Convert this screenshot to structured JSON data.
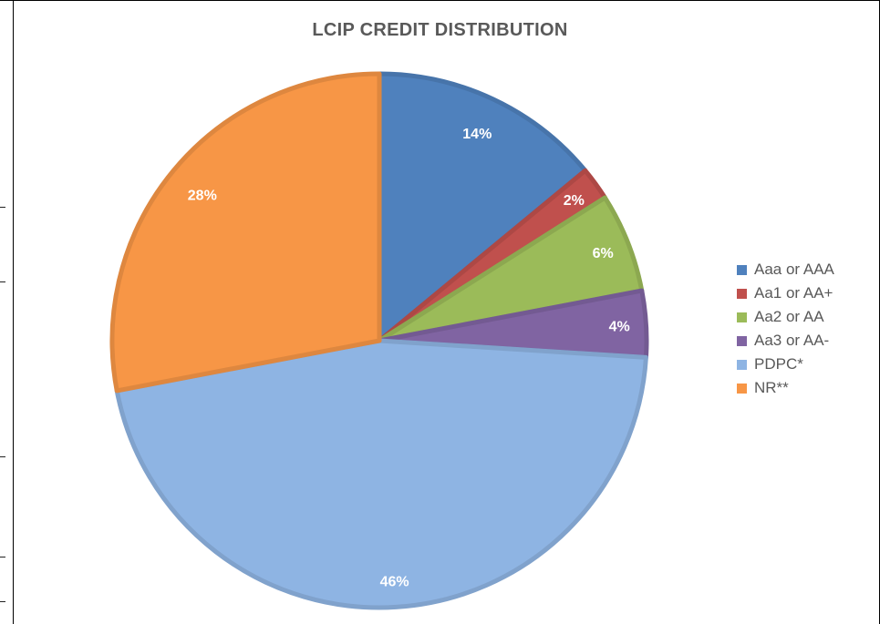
{
  "chart_data": {
    "type": "pie",
    "title": "LCIP CREDIT DISTRIBUTION",
    "slices": [
      {
        "name": "Aaa or AAA",
        "value": 14,
        "label": "14%",
        "color": "#4f81bd"
      },
      {
        "name": "Aa1 or AA+",
        "value": 2,
        "label": "2%",
        "color": "#c0504d"
      },
      {
        "name": "Aa2 or AA",
        "value": 6,
        "label": "6%",
        "color": "#9bbb59"
      },
      {
        "name": "Aa3 or AA-",
        "value": 4,
        "label": "4%",
        "color": "#8064a2"
      },
      {
        "name": "PDPC*",
        "value": 46,
        "label": "46%",
        "color": "#8eb4e3"
      },
      {
        "name": "NR**",
        "value": 28,
        "label": "28%",
        "color": "#f79646"
      }
    ],
    "start_angle": "12 o'clock",
    "direction": "clockwise",
    "legend_position": "right"
  }
}
